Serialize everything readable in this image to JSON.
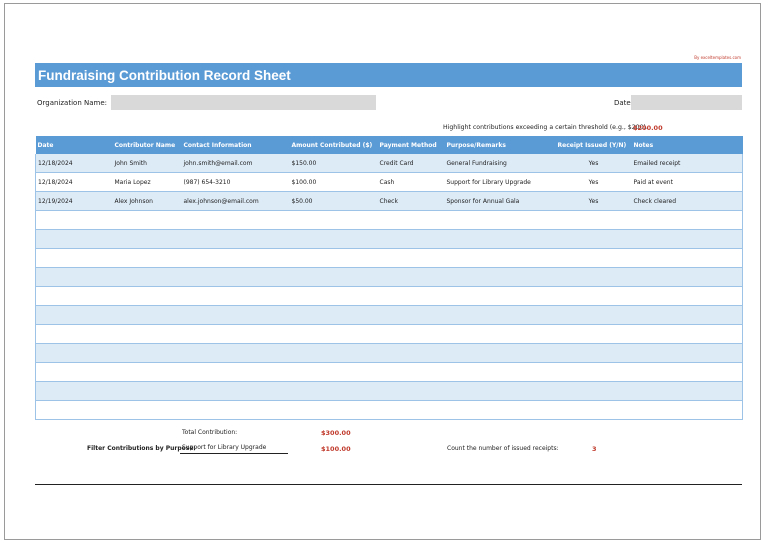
{
  "credit": "By exceltemplates.com",
  "title": "Fundraising Contribution Record Sheet",
  "org": {
    "label": "Organization Name:",
    "value": ""
  },
  "date": {
    "label": "Date:",
    "value": ""
  },
  "threshold": {
    "label": "Highlight contributions exceeding a certain threshold (e.g., $200).",
    "value": "$200.00"
  },
  "table": {
    "headers": [
      "Date",
      "Contributor Name",
      "Contact Information",
      "Amount Contributed ($)",
      "Payment Method",
      "Purpose/Remarks",
      "Receipt Issued (Y/N)",
      "Notes"
    ],
    "rows": [
      [
        "12/18/2024",
        "John Smith",
        "john.smith@email.com",
        "$150.00",
        "Credit Card",
        "General Fundraising",
        "Yes",
        "Emailed receipt"
      ],
      [
        "12/18/2024",
        "Maria Lopez",
        "(987) 654-3210",
        "$100.00",
        "Cash",
        "Support for Library Upgrade",
        "Yes",
        "Paid at event"
      ],
      [
        "12/19/2024",
        "Alex Johnson",
        "alex.johnson@email.com",
        "$50.00",
        "Check",
        "Sponsor for Annual Gala",
        "Yes",
        "Check cleared"
      ]
    ],
    "empty_rows": 11
  },
  "summary": {
    "total_label": "Total Contribution:",
    "total_value": "$300.00",
    "filter_label": "Filter Contributions by Purpose:",
    "filter_selected": "Support for Library Upgrade",
    "filter_value": "$100.00",
    "count_label": "Count the number of issued receipts:",
    "count_value": "3"
  },
  "colors": {
    "header": "#5b9bd5",
    "row_shade": "#ddebf7",
    "accent_red": "#c0392b",
    "input_gray": "#d9d9d9"
  }
}
